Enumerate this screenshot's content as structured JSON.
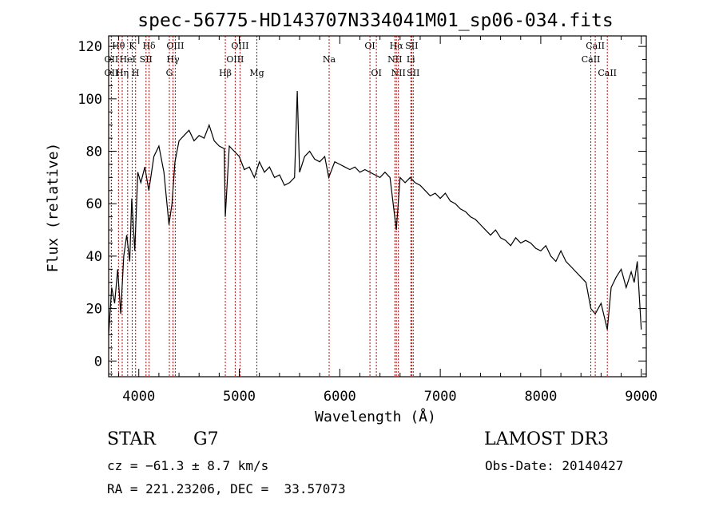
{
  "chart_data": {
    "type": "line",
    "title": "spec-56775-HD143707N334041M01_sp06-034.fits",
    "xlabel": "Wavelength (Å)",
    "ylabel": "Flux (relative)",
    "xlim": [
      3700,
      9050
    ],
    "ylim": [
      -6,
      124
    ],
    "xticks": [
      4000,
      5000,
      6000,
      7000,
      8000,
      9000
    ],
    "xtick_labels": [
      "4000",
      "5000",
      "6000",
      "7000",
      "8000",
      "9000"
    ],
    "yticks": [
      0,
      20,
      40,
      60,
      80,
      100,
      120
    ],
    "ytick_labels": [
      "0",
      "20",
      "40",
      "60",
      "80",
      "100",
      "120"
    ],
    "line_color": "#000000",
    "marker_color": "#cc0000",
    "series": [
      {
        "name": "flux",
        "x": [
          3700,
          3730,
          3760,
          3790,
          3820,
          3850,
          3880,
          3910,
          3930,
          3960,
          3990,
          4020,
          4060,
          4100,
          4150,
          4200,
          4250,
          4300,
          4330,
          4360,
          4400,
          4450,
          4500,
          4550,
          4600,
          4650,
          4700,
          4750,
          4800,
          4850,
          4861,
          4900,
          4950,
          5000,
          5050,
          5100,
          5150,
          5200,
          5250,
          5300,
          5350,
          5400,
          5450,
          5500,
          5550,
          5577,
          5600,
          5650,
          5700,
          5750,
          5800,
          5850,
          5890,
          5950,
          6000,
          6050,
          6100,
          6150,
          6200,
          6250,
          6300,
          6350,
          6400,
          6450,
          6500,
          6563,
          6600,
          6650,
          6700,
          6750,
          6800,
          6850,
          6900,
          6950,
          7000,
          7050,
          7100,
          7150,
          7200,
          7250,
          7300,
          7350,
          7400,
          7450,
          7500,
          7550,
          7600,
          7650,
          7700,
          7750,
          7800,
          7850,
          7900,
          7950,
          8000,
          8050,
          8100,
          8150,
          8200,
          8250,
          8300,
          8350,
          8400,
          8450,
          8498,
          8542,
          8600,
          8662,
          8700,
          8750,
          8800,
          8850,
          8900,
          8930,
          8960,
          9000
        ],
        "y": [
          10,
          28,
          22,
          35,
          18,
          40,
          48,
          38,
          62,
          42,
          72,
          68,
          74,
          65,
          78,
          82,
          72,
          52,
          60,
          76,
          84,
          86,
          88,
          84,
          86,
          85,
          90,
          84,
          82,
          81,
          55,
          82,
          80,
          78,
          73,
          74,
          70,
          76,
          72,
          74,
          70,
          71,
          67,
          68,
          70,
          103,
          72,
          78,
          80,
          77,
          76,
          78,
          70,
          76,
          75,
          74,
          73,
          74,
          72,
          73,
          72,
          71,
          70,
          72,
          70,
          50,
          70,
          68,
          70,
          68,
          67,
          65,
          63,
          64,
          62,
          64,
          61,
          60,
          58,
          57,
          55,
          54,
          52,
          50,
          48,
          50,
          47,
          46,
          44,
          47,
          45,
          46,
          45,
          43,
          42,
          44,
          40,
          38,
          42,
          38,
          36,
          34,
          32,
          30,
          20,
          18,
          22,
          12,
          28,
          32,
          35,
          28,
          34,
          30,
          38,
          12
        ]
      }
    ],
    "line_markers": [
      {
        "name": "OII",
        "x": 3727,
        "row": 2
      },
      {
        "name": "Hθ",
        "x": 3798,
        "row": 1
      },
      {
        "name": "OII",
        "x": 3727,
        "row": 3
      },
      {
        "name": "Hη",
        "x": 3835,
        "row": 3
      },
      {
        "name": "HeI",
        "x": 3889,
        "row": 2
      },
      {
        "name": "K",
        "x": 3934,
        "row": 1
      },
      {
        "name": "H",
        "x": 3968,
        "row": 3
      },
      {
        "name": "SII",
        "x": 4072,
        "row": 2
      },
      {
        "name": "Hδ",
        "x": 4102,
        "row": 1
      },
      {
        "name": "G",
        "x": 4304,
        "row": 3
      },
      {
        "name": "Hγ",
        "x": 4340,
        "row": 2
      },
      {
        "name": "OIII",
        "x": 4363,
        "row": 1
      },
      {
        "name": "Hβ",
        "x": 4861,
        "row": 3
      },
      {
        "name": "OIII",
        "x": 4959,
        "row": 2
      },
      {
        "name": "OIII",
        "x": 5007,
        "row": 1
      },
      {
        "name": "Mg",
        "x": 5175,
        "row": 3
      },
      {
        "name": "Na",
        "x": 5894,
        "row": 2
      },
      {
        "name": "OI",
        "x": 6300,
        "row": 1
      },
      {
        "name": "OI",
        "x": 6364,
        "row": 3
      },
      {
        "name": "NII",
        "x": 6548,
        "row": 2
      },
      {
        "name": "Hα",
        "x": 6563,
        "row": 1
      },
      {
        "name": "NII",
        "x": 6583,
        "row": 3
      },
      {
        "name": "Li",
        "x": 6707,
        "row": 2
      },
      {
        "name": "SII",
        "x": 6716,
        "row": 1
      },
      {
        "name": "SII",
        "x": 6731,
        "row": 3
      },
      {
        "name": "CaII",
        "x": 8498,
        "row": 2
      },
      {
        "name": "CaII",
        "x": 8542,
        "row": 1
      },
      {
        "name": "CaII",
        "x": 8662,
        "row": 3
      }
    ]
  },
  "footer": {
    "object_type": "STAR",
    "subclass": "G7",
    "survey": "LAMOST DR3",
    "redshift": "cz = −61.3 ± 8.7 km/s",
    "obs_date": "Obs-Date: 20140427",
    "coords": "RA = 221.23206, DEC =  33.57073"
  }
}
